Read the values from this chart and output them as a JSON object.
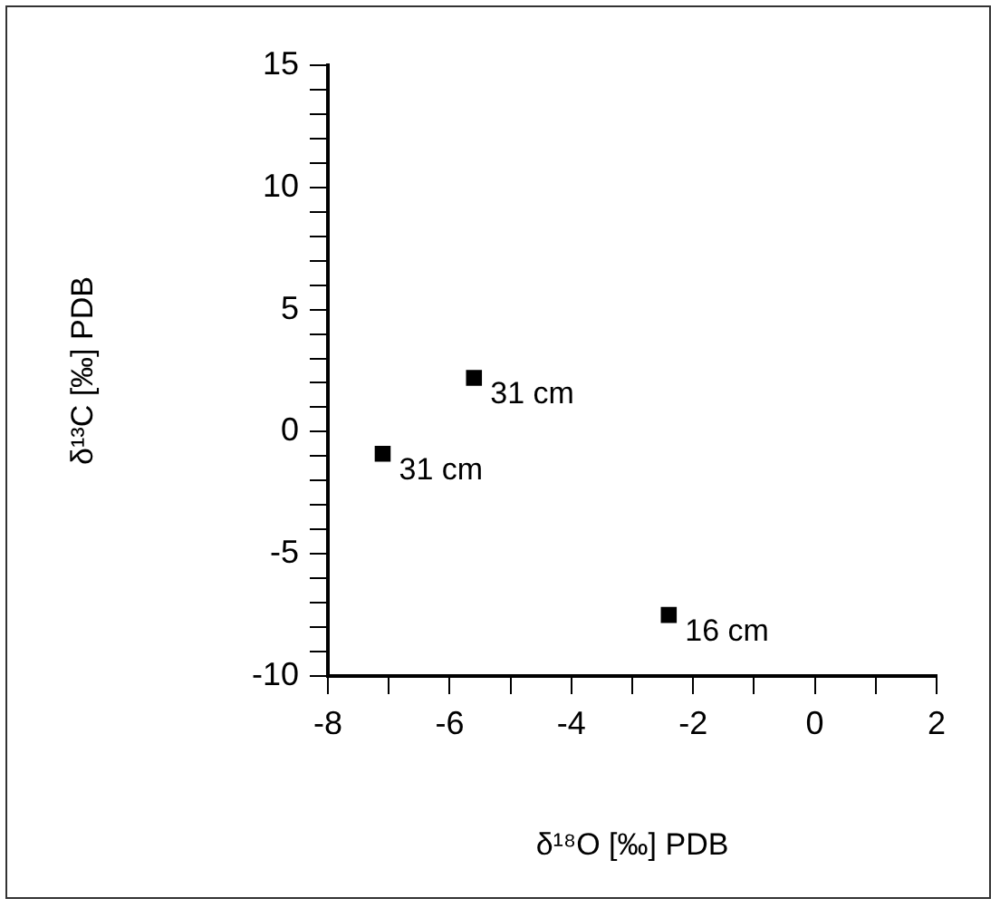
{
  "chart_data": {
    "type": "scatter",
    "xlabel": "δ¹⁸O [‰] PDB",
    "ylabel": "δ¹³C [‰] PDB",
    "series": [
      {
        "color": "#000000",
        "x": [
          -5.6,
          -7.1,
          -2.4
        ],
        "values": [
          2.2,
          -0.9,
          -7.5
        ]
      }
    ],
    "annotations": [
      {
        "text": "31 cm",
        "x": -5.6,
        "y": 2.2
      },
      {
        "text": "31 cm",
        "x": -7.1,
        "y": -0.9
      },
      {
        "text": "16 cm",
        "x": -2.4,
        "y": -7.5
      }
    ],
    "marker": "square",
    "grid": false,
    "legend": false,
    "xlim": [
      -8,
      2
    ],
    "ylim": [
      -10,
      15
    ],
    "xticks": [
      -8,
      {
        "value": -7,
        "label": null
      },
      -6,
      {
        "value": -5,
        "label": null
      },
      -4,
      {
        "value": -3,
        "label": null
      },
      -2,
      {
        "value": -1,
        "label": null
      },
      0,
      {
        "value": 1,
        "label": null
      },
      2
    ],
    "yticks": [
      -10,
      {
        "value": -9,
        "label": null
      },
      {
        "value": -8,
        "label": null
      },
      {
        "value": -7,
        "label": null
      },
      {
        "value": -6,
        "label": null
      },
      -5,
      {
        "value": -4,
        "label": null
      },
      {
        "value": -3,
        "label": null
      },
      {
        "value": -2,
        "label": null
      },
      {
        "value": -1,
        "label": null
      },
      0,
      {
        "value": 1,
        "label": null
      },
      {
        "value": 2,
        "label": null
      },
      {
        "value": 3,
        "label": null
      },
      {
        "value": 4,
        "label": null
      },
      5,
      {
        "value": 6,
        "label": null
      },
      {
        "value": 7,
        "label": null
      },
      {
        "value": 8,
        "label": null
      },
      {
        "value": 9,
        "label": null
      },
      10,
      {
        "value": 11,
        "label": null
      },
      {
        "value": 12,
        "label": null
      },
      {
        "value": 13,
        "label": null
      },
      {
        "value": 14,
        "label": null
      },
      15
    ]
  }
}
